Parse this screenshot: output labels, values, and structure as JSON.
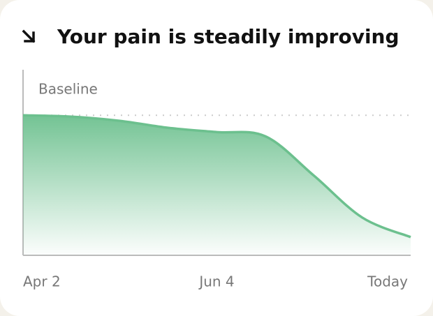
{
  "chart_data": {
    "type": "area",
    "title": "Your pain is steadily improving",
    "categories": [
      "Apr 2",
      null,
      null,
      null,
      "Jun 4",
      null,
      null,
      null,
      "Today"
    ],
    "values": [
      100,
      99,
      96,
      91,
      88,
      85,
      57,
      27,
      13
    ],
    "color": "#6cc08e",
    "ylim": [
      0,
      130
    ],
    "baseline": {
      "label": "Baseline",
      "value": 100
    }
  }
}
